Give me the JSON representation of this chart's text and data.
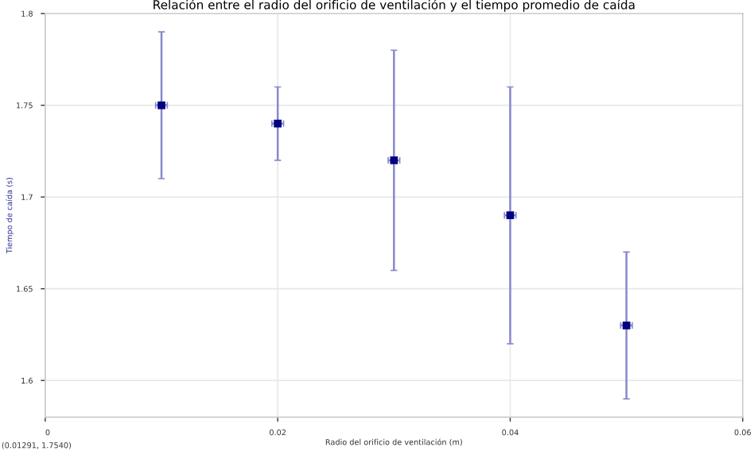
{
  "chart_data": {
    "type": "scatter",
    "title": "Relación entre el radio del orificio de ventilación y el tiempo promedio de caída",
    "xlabel": "Radio del orificio de ventilación (m)",
    "ylabel": "Tiempo de caída (s)",
    "x": [
      0.01,
      0.02,
      0.03,
      0.04,
      0.05
    ],
    "series": [
      {
        "color": "#000080",
        "values": [
          1.75,
          1.74,
          1.72,
          1.69,
          1.63
        ],
        "errors": [
          0.04,
          0.02,
          0.06,
          0.07,
          0.04
        ],
        "xerrors": [
          0.0005,
          0.0005,
          0.0005,
          0.0005,
          0.0005
        ]
      }
    ],
    "xlim": [
      0,
      0.06
    ],
    "xticks": [
      0,
      0.02,
      0.04,
      0.06
    ],
    "ylim": [
      1.58,
      1.8
    ],
    "yticks": [
      1.6,
      1.65,
      1.7,
      1.75,
      1.8
    ],
    "grid": true,
    "marker": "square",
    "annotations": [
      "(0.01291, 1.7540)"
    ]
  }
}
